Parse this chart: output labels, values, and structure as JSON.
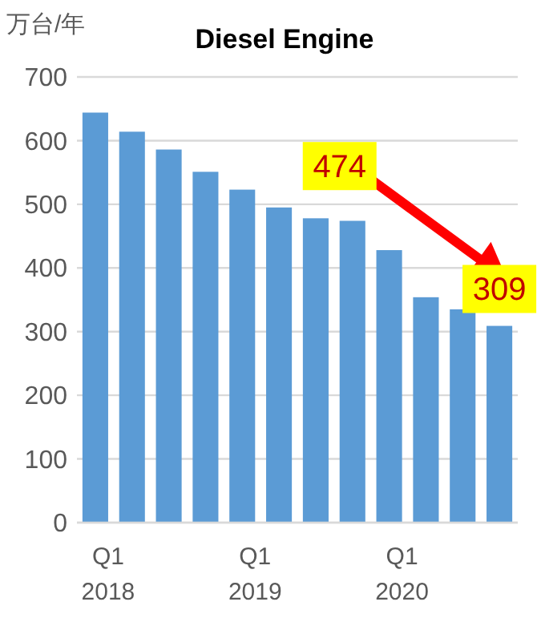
{
  "chart_data": {
    "type": "bar",
    "title": "Diesel Engine",
    "ylabel": "万台/年",
    "categories": [
      "Q1\n2018",
      null,
      null,
      null,
      "Q1\n2019",
      null,
      null,
      null,
      "Q1\n2020",
      null,
      null,
      null
    ],
    "values": [
      644,
      614,
      586,
      551,
      523,
      495,
      478,
      474,
      428,
      354,
      335,
      309
    ],
    "color": "#5b9bd5",
    "ylim": [
      0,
      700
    ],
    "yticks": [
      0,
      100,
      200,
      300,
      400,
      500,
      600,
      700
    ],
    "grid": "y",
    "annotations": [
      "474",
      "309"
    ]
  }
}
